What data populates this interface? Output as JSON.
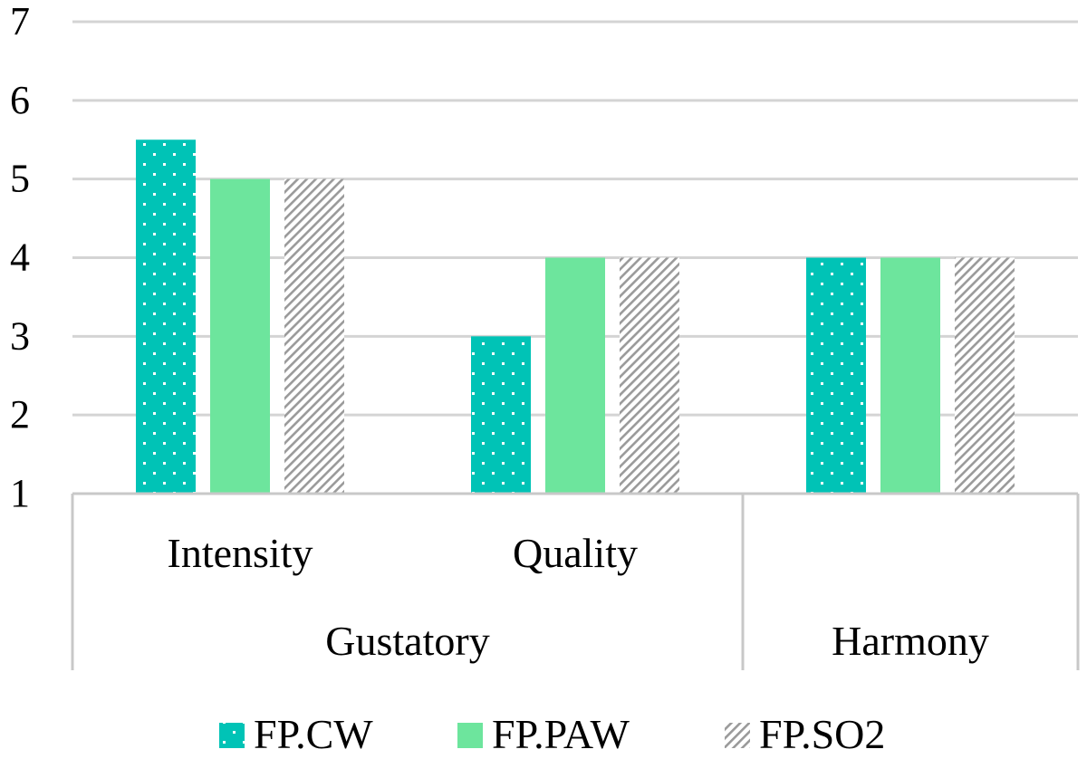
{
  "chart_data": {
    "type": "bar",
    "categories": [
      "Intensity",
      "Quality",
      "Harmony"
    ],
    "groups": [
      {
        "label": "Gustatory",
        "categories": [
          "Intensity",
          "Quality"
        ]
      },
      {
        "label": "Harmony",
        "categories": [
          ""
        ]
      }
    ],
    "series": [
      {
        "name": "FP.CW",
        "values": [
          5.5,
          3,
          4
        ]
      },
      {
        "name": "FP.PAW",
        "values": [
          5,
          4,
          4
        ]
      },
      {
        "name": "FP.SO2",
        "values": [
          5,
          4,
          4
        ]
      }
    ],
    "ylim": [
      1,
      7
    ],
    "yticks": [
      "1",
      "2",
      "3",
      "4",
      "5",
      "6",
      "7"
    ],
    "grid": true,
    "legend_position": "bottom",
    "colors": {
      "FP.CW": "#00c3b6",
      "FP.PAW": "#6de59d",
      "FP.SO2": "#9a9a9a",
      "grid": "#d4d4d4",
      "axis": "#c8c8c8"
    },
    "patterns": {
      "FP.CW": "dots",
      "FP.PAW": "solid",
      "FP.SO2": "diagonal-stripes"
    }
  }
}
